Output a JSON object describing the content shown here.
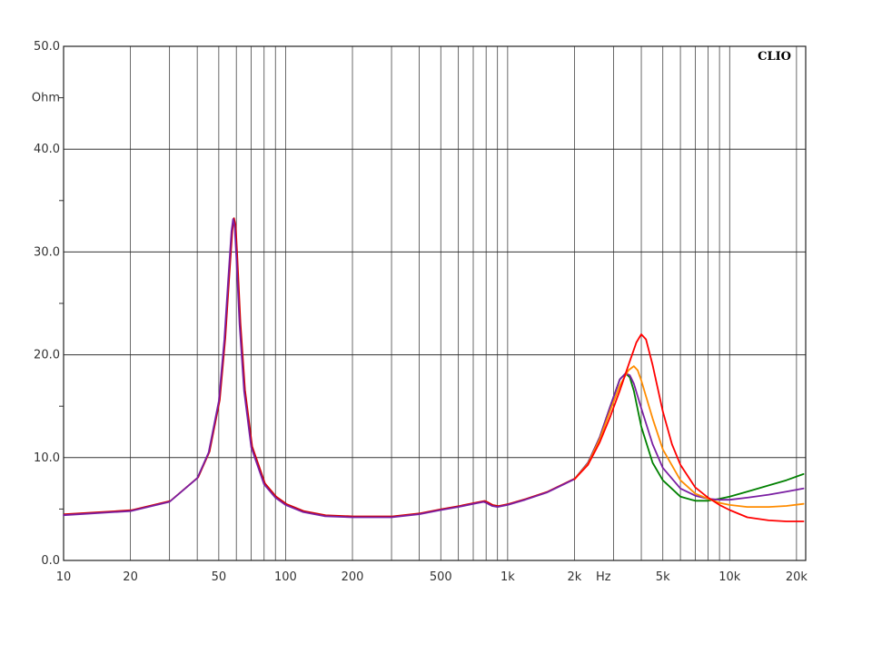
{
  "brand": "CLIO",
  "chart_data": {
    "type": "line",
    "title": "",
    "xlabel": "Hz",
    "ylabel": "Ohm",
    "xscale": "log",
    "xlim": [
      10,
      22000
    ],
    "ylim": [
      0,
      50
    ],
    "grid": true,
    "x_ticks": [
      {
        "value": 10,
        "label": "10"
      },
      {
        "value": 20,
        "label": "20"
      },
      {
        "value": 50,
        "label": "50"
      },
      {
        "value": 100,
        "label": "100"
      },
      {
        "value": 200,
        "label": "200"
      },
      {
        "value": 500,
        "label": "500"
      },
      {
        "value": 1000,
        "label": "1k"
      },
      {
        "value": 2000,
        "label": "2k"
      },
      {
        "value": 5000,
        "label": "5k"
      },
      {
        "value": 10000,
        "label": "10k"
      },
      {
        "value": 20000,
        "label": "20k"
      }
    ],
    "y_ticks": [
      {
        "value": 0,
        "label": "0.0"
      },
      {
        "value": 10,
        "label": "10.0"
      },
      {
        "value": 20,
        "label": "20.0"
      },
      {
        "value": 30,
        "label": "30.0"
      },
      {
        "value": 40,
        "label": "40.0"
      },
      {
        "value": 50,
        "label": "50.0"
      }
    ],
    "x_unit_label": {
      "value": 2700,
      "label": "Hz"
    },
    "y_unit_label": {
      "value": 45,
      "label": "Ohm"
    },
    "low_band": {
      "x": [
        10,
        20,
        30,
        40,
        45,
        50,
        53,
        55,
        57,
        58,
        59,
        60,
        62,
        65,
        70,
        80,
        90,
        100,
        120,
        150,
        200,
        300,
        400,
        500,
        600,
        700,
        780,
        800,
        850,
        900,
        1000,
        1200,
        1500,
        2000
      ],
      "values": [
        4.4,
        4.8,
        5.7,
        8.0,
        10.5,
        15.5,
        21.5,
        27.0,
        32.0,
        33.2,
        32.5,
        29.5,
        23.0,
        16.5,
        11.0,
        7.4,
        6.1,
        5.4,
        4.7,
        4.3,
        4.2,
        4.2,
        4.5,
        4.9,
        5.2,
        5.5,
        5.7,
        5.6,
        5.3,
        5.2,
        5.4,
        5.9,
        6.6,
        7.9
      ],
      "colors": [
        "#d40000",
        "#7a1fa2"
      ]
    },
    "series": [
      {
        "color": "#008000",
        "x": [
          2000,
          2300,
          2600,
          2900,
          3200,
          3400,
          3550,
          3700,
          4000,
          4500,
          5000,
          6000,
          7000,
          8000,
          9000,
          10000,
          12000,
          15000,
          18000,
          21500
        ],
        "values": [
          7.9,
          9.5,
          12.0,
          15.0,
          17.6,
          18.2,
          17.8,
          16.5,
          13.0,
          9.5,
          7.8,
          6.2,
          5.8,
          5.8,
          6.0,
          6.2,
          6.7,
          7.3,
          7.8,
          8.4
        ]
      },
      {
        "color": "#7a1fa2",
        "x": [
          2000,
          2300,
          2600,
          2900,
          3200,
          3400,
          3550,
          3700,
          4000,
          4500,
          5000,
          6000,
          7000,
          8000,
          9000,
          10000,
          12000,
          15000,
          18000,
          21500
        ],
        "values": [
          7.9,
          9.5,
          12.0,
          15.0,
          17.6,
          18.2,
          18.0,
          17.2,
          14.8,
          11.3,
          9.0,
          7.0,
          6.3,
          6.0,
          5.9,
          5.9,
          6.1,
          6.4,
          6.7,
          7.0
        ]
      },
      {
        "color": "#ff8c00",
        "x": [
          2000,
          2300,
          2600,
          2900,
          3200,
          3500,
          3700,
          3850,
          4000,
          4500,
          5000,
          6000,
          7000,
          8000,
          9000,
          10000,
          12000,
          15000,
          18000,
          21500
        ],
        "values": [
          7.9,
          9.4,
          11.8,
          14.6,
          17.0,
          18.5,
          18.9,
          18.5,
          17.5,
          13.8,
          10.8,
          7.8,
          6.5,
          6.0,
          5.6,
          5.4,
          5.2,
          5.2,
          5.3,
          5.5
        ]
      },
      {
        "color": "#ff0000",
        "x": [
          2000,
          2300,
          2600,
          2900,
          3200,
          3500,
          3800,
          4000,
          4200,
          4500,
          5000,
          5500,
          6000,
          7000,
          8000,
          9000,
          10000,
          12000,
          15000,
          18000,
          21500
        ],
        "values": [
          7.9,
          9.3,
          11.5,
          14.0,
          16.5,
          19.0,
          21.2,
          22.0,
          21.5,
          19.0,
          14.5,
          11.3,
          9.3,
          7.1,
          6.1,
          5.4,
          4.9,
          4.2,
          3.9,
          3.8,
          3.8
        ]
      }
    ]
  }
}
